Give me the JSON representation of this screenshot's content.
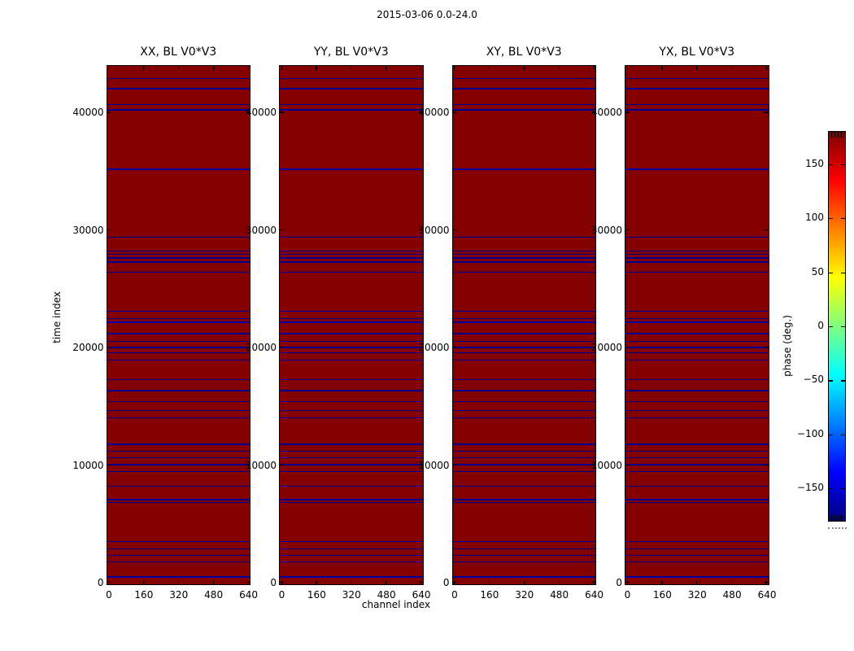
{
  "figure": {
    "title": "2015-03-06 0.0-24.0",
    "xlabel": "channel index",
    "ylabel": "time index"
  },
  "colorbar": {
    "label": "phase (deg.)",
    "ticks": [
      "150",
      "100",
      "50",
      "0",
      "−50",
      "−100",
      "−150"
    ],
    "tick_values": [
      150,
      100,
      50,
      0,
      -50,
      -100,
      -150
    ],
    "range": [
      -180,
      180
    ],
    "colormap": "jet"
  },
  "chart_data": {
    "type": "heatmap",
    "title": "2015-03-06 0.0-24.0",
    "xlabel": "channel index",
    "ylabel": "time index",
    "value_label": "phase (deg.)",
    "value_range": [
      -180,
      180
    ],
    "colormap": "jet",
    "x_ticks": [
      0,
      160,
      320,
      480,
      640
    ],
    "y_ticks": [
      0,
      10000,
      20000,
      30000,
      40000
    ],
    "x_range": [
      0,
      643
    ],
    "y_range": [
      0,
      44000
    ],
    "background_value_color": "#840000",
    "line_value_color": "#000090",
    "panels": [
      {
        "title": "XX, BL V0*V3"
      },
      {
        "title": "YY, BL V0*V3"
      },
      {
        "title": "XY, BL V0*V3"
      },
      {
        "title": "YX, BL V0*V3"
      }
    ],
    "note": "All four polarization panels show an identical pattern: uniform +180 deg (dark red) phase with narrow low-phase (dark blue) horizontal stripes at the time indices listed in blue_rows.",
    "blue_rows": [
      {
        "t": 42850,
        "w": 1.3
      },
      {
        "t": 42000,
        "w": 1.3
      },
      {
        "t": 40650,
        "w": 1.3
      },
      {
        "t": 40200,
        "w": 1.3
      },
      {
        "t": 35150,
        "w": 2.7,
        "c": "#0000a8"
      },
      {
        "t": 29350,
        "w": 1.3
      },
      {
        "t": 28200,
        "w": 1.3
      },
      {
        "t": 27900,
        "w": 1.3
      },
      {
        "t": 27600,
        "w": 1.3
      },
      {
        "t": 27250,
        "w": 1.3
      },
      {
        "t": 26400,
        "w": 1.3
      },
      {
        "t": 23050,
        "w": 1.3
      },
      {
        "t": 22450,
        "w": 1.3
      },
      {
        "t": 22100,
        "w": 1.8,
        "c": "#0000a0"
      },
      {
        "t": 21150,
        "w": 1.3
      },
      {
        "t": 20520,
        "w": 1.3
      },
      {
        "t": 19970,
        "w": 1.3
      },
      {
        "t": 19520,
        "w": 1.3
      },
      {
        "t": 18900,
        "w": 1.3
      },
      {
        "t": 17250,
        "w": 1.3
      },
      {
        "t": 16300,
        "w": 1.3
      },
      {
        "t": 15350,
        "w": 1.3
      },
      {
        "t": 14600,
        "w": 1.3
      },
      {
        "t": 14000,
        "w": 1.3
      },
      {
        "t": 11740,
        "w": 1.3
      },
      {
        "t": 11165,
        "w": 1.3
      },
      {
        "t": 10590,
        "w": 1.3
      },
      {
        "t": 10010,
        "w": 1.3
      },
      {
        "t": 9440,
        "w": 1.3
      },
      {
        "t": 8170,
        "w": 1.3
      },
      {
        "t": 7020,
        "w": 1.3
      },
      {
        "t": 6790,
        "w": 1.3
      },
      {
        "t": 3440,
        "w": 1.3
      },
      {
        "t": 2820,
        "w": 1.3
      },
      {
        "t": 2300,
        "w": 1.3
      },
      {
        "t": 1715,
        "w": 1.3
      },
      {
        "t": 450,
        "w": 2,
        "c": "#0000a0"
      }
    ]
  }
}
